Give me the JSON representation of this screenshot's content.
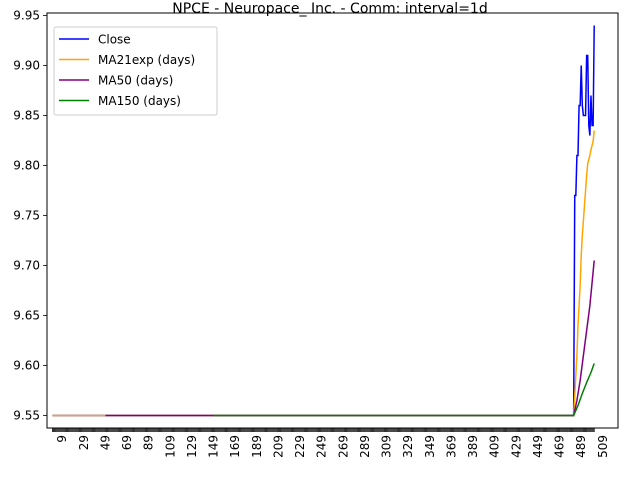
{
  "chart_data": {
    "type": "line",
    "title": "NPCE - Neuropace_ Inc. - Comm: interval=1d",
    "xlabel": "",
    "ylabel": "",
    "xlim": [
      -5,
      523
    ],
    "ylim": [
      9.5375,
      9.9525
    ],
    "x_tick_labels": [
      "9",
      "29",
      "49",
      "69",
      "89",
      "109",
      "129",
      "149",
      "169",
      "189",
      "209",
      "229",
      "249",
      "269",
      "289",
      "309",
      "329",
      "349",
      "369",
      "389",
      "409",
      "429",
      "449",
      "469",
      "489",
      "509"
    ],
    "y_tick_labels": [
      "9.55",
      "9.60",
      "9.65",
      "9.70",
      "9.75",
      "9.80",
      "9.85",
      "9.90",
      "9.95"
    ],
    "legend_position": "top-left",
    "series": [
      {
        "name": "Close",
        "color": "#0000ff",
        "points": [
          [
            0,
            9.55
          ],
          [
            482,
            9.55
          ],
          [
            483,
            9.77
          ],
          [
            484,
            9.77
          ],
          [
            485,
            9.81
          ],
          [
            486,
            9.81
          ],
          [
            487,
            9.86
          ],
          [
            488,
            9.86
          ],
          [
            489,
            9.9
          ],
          [
            490,
            9.86
          ],
          [
            491,
            9.85
          ],
          [
            492,
            9.85
          ],
          [
            493,
            9.85
          ],
          [
            494,
            9.91
          ],
          [
            495,
            9.91
          ],
          [
            496,
            9.84
          ],
          [
            497,
            9.83
          ],
          [
            498,
            9.87
          ],
          [
            499,
            9.84
          ],
          [
            500,
            9.84
          ],
          [
            501,
            9.94
          ]
        ]
      },
      {
        "name": "MA21exp (days)",
        "color": "#ffa500",
        "points": [
          [
            0,
            9.55
          ],
          [
            482,
            9.55
          ],
          [
            483,
            9.57
          ],
          [
            484,
            9.59
          ],
          [
            485,
            9.61
          ],
          [
            486,
            9.64
          ],
          [
            487,
            9.66
          ],
          [
            488,
            9.68
          ],
          [
            489,
            9.71
          ],
          [
            490,
            9.73
          ],
          [
            491,
            9.745
          ],
          [
            492,
            9.76
          ],
          [
            493,
            9.775
          ],
          [
            494,
            9.79
          ],
          [
            495,
            9.802
          ],
          [
            496,
            9.806
          ],
          [
            497,
            9.81
          ],
          [
            498,
            9.816
          ],
          [
            499,
            9.82
          ],
          [
            500,
            9.824
          ],
          [
            501,
            9.835
          ]
        ]
      },
      {
        "name": "MA50 (days)",
        "color": "#800080",
        "points": [
          [
            49,
            9.55
          ],
          [
            482,
            9.55
          ],
          [
            485,
            9.565
          ],
          [
            488,
            9.585
          ],
          [
            491,
            9.61
          ],
          [
            494,
            9.635
          ],
          [
            497,
            9.66
          ],
          [
            501,
            9.705
          ]
        ]
      },
      {
        "name": "MA150 (days)",
        "color": "#008000",
        "points": [
          [
            149,
            9.55
          ],
          [
            482,
            9.55
          ],
          [
            486,
            9.56
          ],
          [
            490,
            9.572
          ],
          [
            494,
            9.583
          ],
          [
            498,
            9.593
          ],
          [
            501,
            9.602
          ]
        ]
      }
    ]
  }
}
